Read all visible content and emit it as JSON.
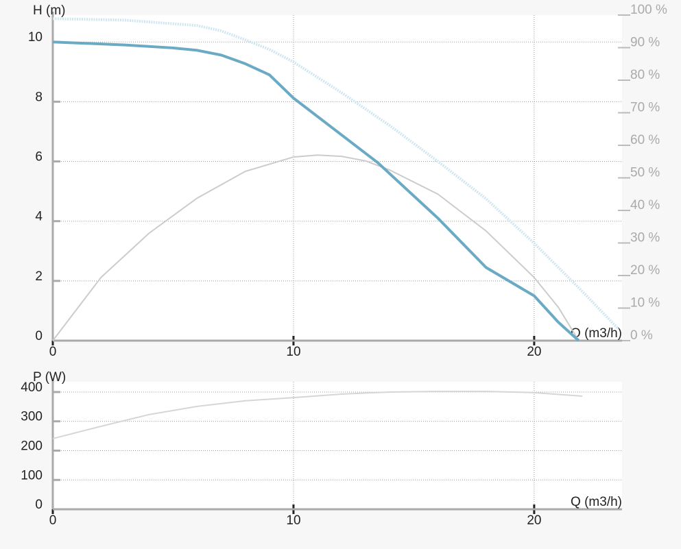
{
  "chart_data": [
    {
      "type": "line",
      "ylabel": "H (m)",
      "xlabel": "Q (m3/h)",
      "xlim": [
        0,
        23.65
      ],
      "xticks": [
        0,
        10,
        20
      ],
      "ylim": [
        0,
        10.9
      ],
      "yticks": [
        0,
        2,
        4,
        6,
        8,
        10
      ],
      "y2lim": [
        0,
        100
      ],
      "y2ticks": [
        {
          "value": 0,
          "label": "0 %"
        },
        {
          "value": 10,
          "label": "10 %"
        },
        {
          "value": 20,
          "label": "20 %"
        },
        {
          "value": 30,
          "label": "30 %"
        },
        {
          "value": 40,
          "label": "40 %"
        },
        {
          "value": 50,
          "label": "50 %"
        },
        {
          "value": 60,
          "label": "60 %"
        },
        {
          "value": 70,
          "label": "70 %"
        },
        {
          "value": 80,
          "label": "80 %"
        },
        {
          "value": 90,
          "label": "90 %"
        },
        {
          "value": 100,
          "label": "100 %"
        }
      ],
      "grid": true,
      "series": [
        {
          "color": "#cfe6f0",
          "style": "dotted",
          "x": [
            0,
            3,
            6,
            7,
            8,
            9,
            10,
            12,
            14,
            16,
            18,
            20,
            22,
            23.5
          ],
          "values": [
            10.78,
            10.73,
            10.55,
            10.37,
            10.07,
            9.75,
            9.33,
            8.3,
            7.2,
            6.0,
            4.75,
            3.26,
            1.65,
            0.39
          ]
        },
        {
          "color": "#cccccc",
          "style": "solid",
          "axis": "y2",
          "x": [
            0,
            2,
            4,
            6,
            8,
            10,
            11,
            12,
            13,
            14,
            16,
            18,
            20,
            21,
            21.85
          ],
          "values": [
            0,
            19.4,
            33,
            43.8,
            52,
            56.4,
            57,
            56.6,
            55.2,
            52.4,
            45,
            33.7,
            19.4,
            10.3,
            0
          ]
        },
        {
          "color": "#6aaac4",
          "style": "thick",
          "x": [
            0,
            3,
            5,
            6,
            7,
            8,
            9,
            10,
            13.5,
            16,
            18,
            20,
            21,
            21.85
          ],
          "values": [
            10,
            9.9,
            9.8,
            9.72,
            9.56,
            9.27,
            8.9,
            8.12,
            5.96,
            4.1,
            2.45,
            1.5,
            0.62,
            0
          ]
        }
      ]
    },
    {
      "type": "line",
      "ylabel": "P (W)",
      "xlabel": "Q (m3/h)",
      "xlim": [
        0,
        23.65
      ],
      "xticks": [
        0,
        10,
        20
      ],
      "ylim": [
        0,
        435
      ],
      "yticks": [
        0,
        100,
        200,
        300,
        400
      ],
      "grid": true,
      "series": [
        {
          "color": "#d6d6d6",
          "style": "solid",
          "x": [
            0,
            2,
            4,
            6,
            8,
            10,
            12,
            14,
            16,
            18,
            20,
            22
          ],
          "values": [
            241,
            283,
            323,
            351,
            370,
            381,
            393,
            400,
            402,
            402,
            398,
            386
          ]
        }
      ]
    }
  ]
}
